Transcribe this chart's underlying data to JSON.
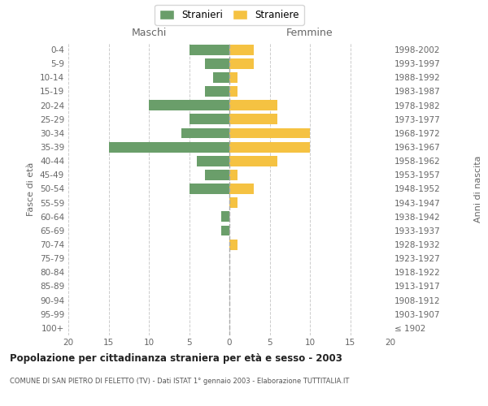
{
  "age_groups": [
    "100+",
    "95-99",
    "90-94",
    "85-89",
    "80-84",
    "75-79",
    "70-74",
    "65-69",
    "60-64",
    "55-59",
    "50-54",
    "45-49",
    "40-44",
    "35-39",
    "30-34",
    "25-29",
    "20-24",
    "15-19",
    "10-14",
    "5-9",
    "0-4"
  ],
  "birth_years": [
    "≤ 1902",
    "1903-1907",
    "1908-1912",
    "1913-1917",
    "1918-1922",
    "1923-1927",
    "1928-1932",
    "1933-1937",
    "1938-1942",
    "1943-1947",
    "1948-1952",
    "1953-1957",
    "1958-1962",
    "1963-1967",
    "1968-1972",
    "1973-1977",
    "1978-1982",
    "1983-1987",
    "1988-1992",
    "1993-1997",
    "1998-2002"
  ],
  "maschi": [
    0,
    0,
    0,
    0,
    0,
    0,
    0,
    1,
    1,
    0,
    5,
    3,
    4,
    15,
    6,
    5,
    10,
    3,
    2,
    3,
    5
  ],
  "femmine": [
    0,
    0,
    0,
    0,
    0,
    0,
    1,
    0,
    0,
    1,
    3,
    1,
    6,
    10,
    10,
    6,
    6,
    1,
    1,
    3,
    3
  ],
  "color_maschi": "#6a9e6a",
  "color_femmine": "#f5c242",
  "title": "Popolazione per cittadinanza straniera per età e sesso - 2003",
  "subtitle": "COMUNE DI SAN PIETRO DI FELETTO (TV) - Dati ISTAT 1° gennaio 2003 - Elaborazione TUTTITALIA.IT",
  "ylabel_left": "Fasce di età",
  "ylabel_right": "Anni di nascita",
  "xlim": 20,
  "legend_stranieri": "Stranieri",
  "legend_straniere": "Straniere",
  "maschi_label": "Maschi",
  "femmine_label": "Femmine",
  "bg_color": "#ffffff",
  "grid_color": "#cccccc",
  "center_line_color": "#aaaaaa",
  "label_color": "#666666"
}
